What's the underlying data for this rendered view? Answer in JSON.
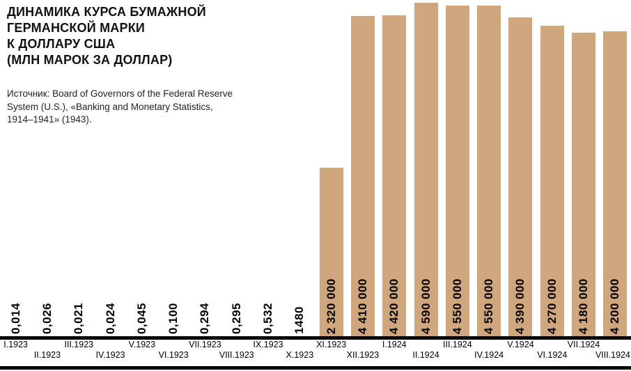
{
  "header": {
    "title_lines": [
      "ДИНАМИКА КУРСА БУМАЖНОЙ",
      "ГЕРМАНСКОЙ МАРКИ",
      "К ДОЛЛАРУ США",
      "(МЛН МАРОК ЗА ДОЛЛАР)"
    ],
    "source_lines": [
      "Источник: Board of Governors of the Federal Reserve",
      "System (U.S.), «Banking and Monetary Statistics,",
      "1914–1941» (1943)."
    ]
  },
  "chart_data": {
    "type": "bar",
    "title": "Динамика курса бумажной германской марки к доллару США (млн марок за доллар)",
    "categories": [
      "I.1923",
      "II.1923",
      "III.1923",
      "IV.1923",
      "V.1923",
      "VI.1923",
      "VII.1923",
      "VIII.1923",
      "IX.1923",
      "X.1923",
      "XI.1923",
      "XII.1923",
      "I.1924",
      "II.1924",
      "III.1924",
      "IV.1924",
      "V.1924",
      "VI.1924",
      "VII.1924",
      "VIII.1924"
    ],
    "values": [
      0.014,
      0.026,
      0.021,
      0.024,
      0.045,
      0.1,
      0.294,
      0.295,
      0.532,
      1480,
      2320000,
      4410000,
      4420000,
      4590000,
      4550000,
      4550000,
      4390000,
      4270000,
      4180000,
      4200000
    ],
    "value_labels": [
      "0,014",
      "0,026",
      "0,021",
      "0,024",
      "0,045",
      "0,100",
      "0,294",
      "0,295",
      "0,532",
      "1480",
      "2 320 000",
      "4 410 000",
      "4 420 000",
      "4 590 000",
      "4 550 000",
      "4 550 000",
      "4 390 000",
      "4 270 000",
      "4 180 000",
      "4 200 000"
    ],
    "xlabel": "",
    "ylabel": "млн марок за доллар",
    "ylim": [
      0,
      4590000
    ],
    "grid": false,
    "legend": "none",
    "bar_color": "#d0a67c"
  }
}
